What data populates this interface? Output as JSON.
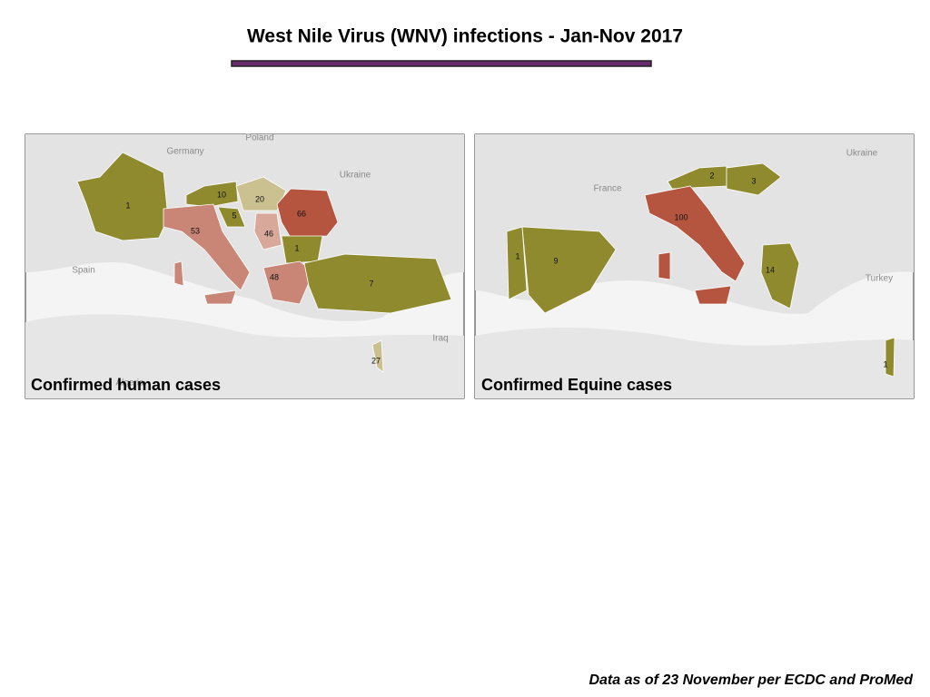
{
  "title": "West Nile Virus (WNV) infections - Jan-Nov 2017",
  "maps": [
    {
      "caption": "Confirmed human cases",
      "place_labels": [
        "Poland",
        "Germany",
        "Ukraine",
        "Spain",
        "Algeria",
        "Iraq"
      ],
      "regions": [
        {
          "value": 1,
          "color": "#8f8a2e"
        },
        {
          "value": 10,
          "color": "#8f8a2e"
        },
        {
          "value": 20,
          "color": "#cbc190"
        },
        {
          "value": 53,
          "color": "#c98677"
        },
        {
          "value": 5,
          "color": "#8f8a2e"
        },
        {
          "value": 46,
          "color": "#d8a89a"
        },
        {
          "value": 66,
          "color": "#b5553f"
        },
        {
          "value": 1,
          "color": "#8f8a2e"
        },
        {
          "value": 48,
          "color": "#c98677"
        },
        {
          "value": 7,
          "color": "#8f8a2e"
        },
        {
          "value": 27,
          "color": "#cbc190"
        }
      ]
    },
    {
      "caption": "Confirmed Equine cases",
      "place_labels": [
        "Ukraine",
        "France",
        "Turkey"
      ],
      "regions": [
        {
          "value": 2,
          "color": "#8f8a2e"
        },
        {
          "value": 3,
          "color": "#8f8a2e"
        },
        {
          "value": 100,
          "color": "#b5553f"
        },
        {
          "value": 1,
          "color": "#8f8a2e"
        },
        {
          "value": 9,
          "color": "#8f8a2e"
        },
        {
          "value": 14,
          "color": "#8f8a2e"
        },
        {
          "value": 1,
          "color": "#8f8a2e"
        }
      ]
    }
  ],
  "footer": "Data as of 23 November per ECDC and ProMed"
}
